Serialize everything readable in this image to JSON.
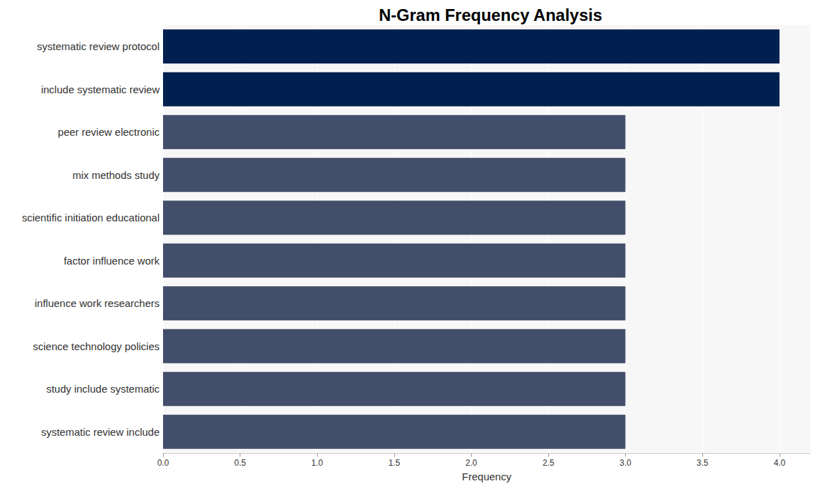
{
  "chart_data": {
    "type": "bar",
    "orientation": "horizontal",
    "title": "N-Gram Frequency Analysis",
    "x_label": "Frequency",
    "categories": [
      "systematic review protocol",
      "include systematic review",
      "peer review electronic",
      "mix methods study",
      "scientific initiation educational",
      "factor influence work",
      "influence work researchers",
      "science technology policies",
      "study include systematic",
      "systematic review include"
    ],
    "values": [
      4,
      4,
      3,
      3,
      3,
      3,
      3,
      3,
      3,
      3
    ],
    "colors": [
      "#00204f",
      "#00204f",
      "#434e6b",
      "#434e6b",
      "#434e6b",
      "#434e6b",
      "#434e6b",
      "#434e6b",
      "#434e6b",
      "#434e6b"
    ],
    "xlim": [
      0,
      4.2
    ],
    "xticks": [
      {
        "value": 0,
        "label": "0.0"
      },
      0.5,
      {
        "value": 1,
        "label": "1.0"
      },
      1.5,
      {
        "value": 2,
        "label": "2.0"
      },
      2.5,
      {
        "value": 3,
        "label": "3.0"
      },
      3.5,
      {
        "value": 4,
        "label": "4.0"
      }
    ],
    "grid": true
  }
}
